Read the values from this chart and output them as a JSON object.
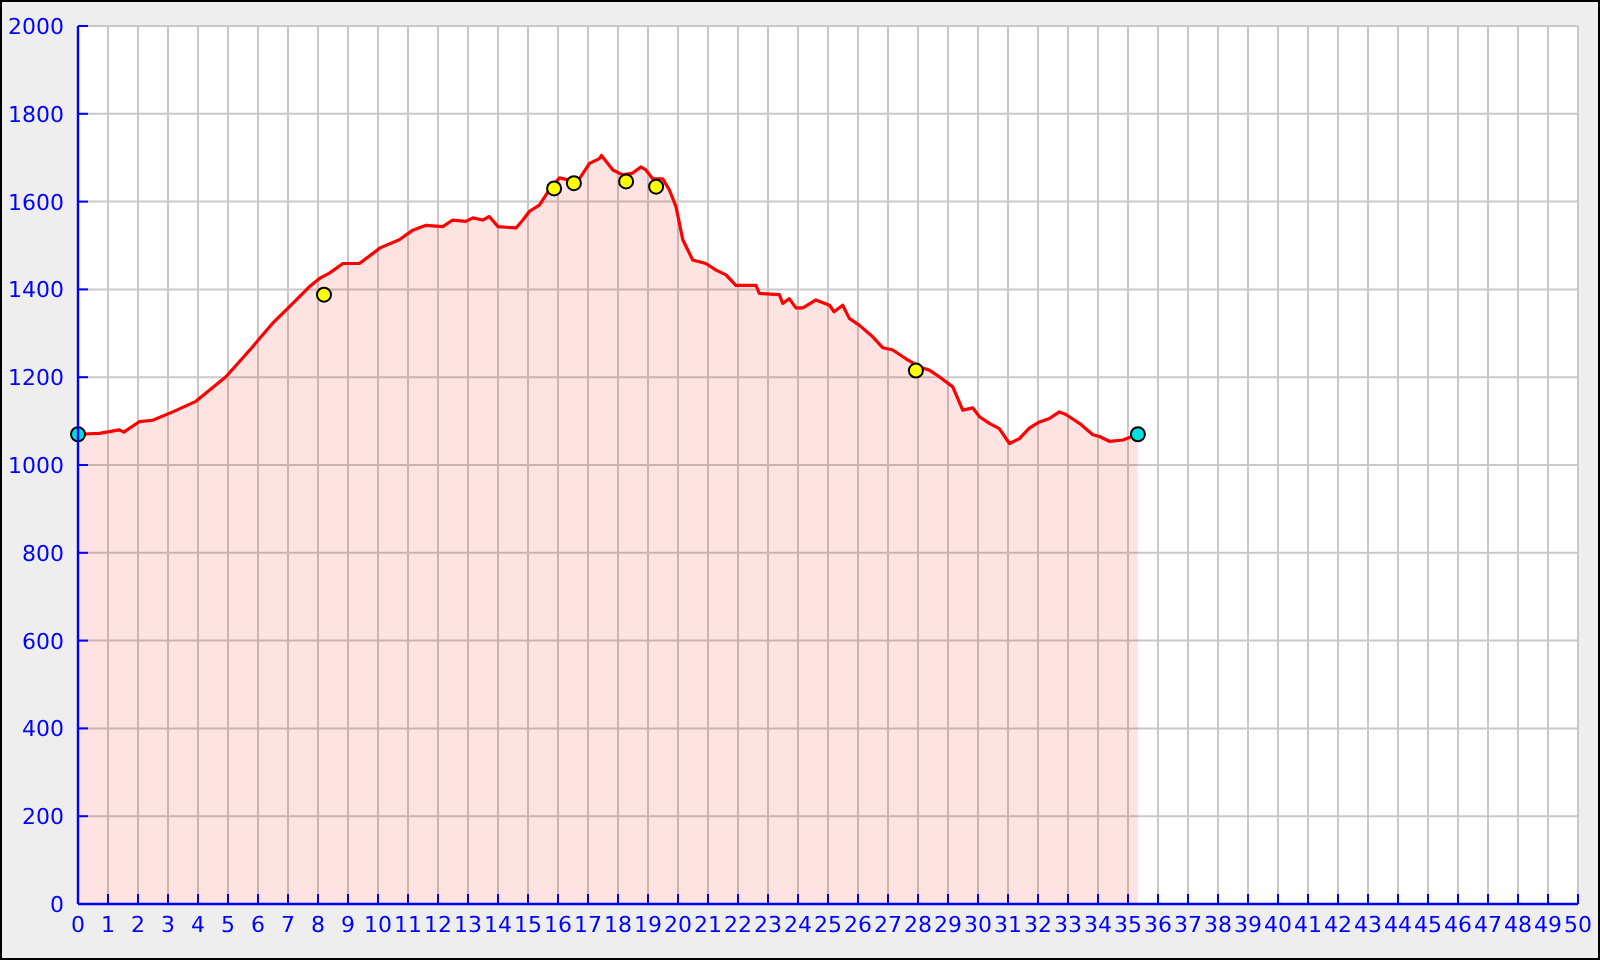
{
  "chart_data": {
    "type": "area",
    "xlim": [
      0,
      50
    ],
    "ylim": [
      0,
      2000
    ],
    "xticks": [
      0,
      1,
      2,
      3,
      4,
      5,
      6,
      7,
      8,
      9,
      10,
      11,
      12,
      13,
      14,
      15,
      16,
      17,
      18,
      19,
      20,
      21,
      22,
      23,
      24,
      25,
      26,
      27,
      28,
      29,
      30,
      31,
      32,
      33,
      34,
      35,
      36,
      37,
      38,
      39,
      40,
      41,
      42,
      43,
      44,
      45,
      46,
      47,
      48,
      49,
      50
    ],
    "yticks": [
      0,
      200,
      400,
      600,
      800,
      1000,
      1200,
      1400,
      1600,
      1800,
      2000
    ],
    "grid": true,
    "series": [
      {
        "color": "#ff0000",
        "x": [
          0,
          0.71,
          1.38,
          1.53,
          2.05,
          2.49,
          3.16,
          3.93,
          4.93,
          5.83,
          6.05,
          6.49,
          7.05,
          7.71,
          8.05,
          8.38,
          8.83,
          9.38,
          9.83,
          10.05,
          10.71,
          11.16,
          11.6,
          12.16,
          12.49,
          12.93,
          13.16,
          13.49,
          13.71,
          14.0,
          14.6,
          14.83,
          15.05,
          15.38,
          15.71,
          16.05,
          16.38,
          16.71,
          17.05,
          17.38,
          17.45,
          17.6,
          17.83,
          18.16,
          18.49,
          18.76,
          18.93,
          19.16,
          19.49,
          19.71,
          19.93,
          20.16,
          20.49,
          20.93,
          21.27,
          21.6,
          21.93,
          22.6,
          22.71,
          23.38,
          23.49,
          23.71,
          23.93,
          24.16,
          24.6,
          25.05,
          25.2,
          25.49,
          25.71,
          26.05,
          26.49,
          26.83,
          27.16,
          27.6,
          28.05,
          28.38,
          28.71,
          29.16,
          29.49,
          29.83,
          30.05,
          30.38,
          30.71,
          31.05,
          31.38,
          31.71,
          32.05,
          32.38,
          32.71,
          32.93,
          33.38,
          33.83,
          34.05,
          34.38,
          34.83,
          35.33
        ],
        "values": [
          1070,
          1072,
          1080,
          1075,
          1099,
          1102,
          1121,
          1145,
          1201,
          1270,
          1288,
          1323,
          1361,
          1406,
          1425,
          1437,
          1459,
          1459,
          1482,
          1494,
          1513,
          1535,
          1546,
          1543,
          1558,
          1555,
          1563,
          1558,
          1566,
          1543,
          1540,
          1558,
          1578,
          1592,
          1627,
          1654,
          1649,
          1652,
          1687,
          1698,
          1705,
          1692,
          1672,
          1661,
          1665,
          1679,
          1672,
          1652,
          1652,
          1627,
          1589,
          1513,
          1467,
          1459,
          1444,
          1433,
          1409,
          1409,
          1391,
          1388,
          1368,
          1379,
          1358,
          1358,
          1376,
          1364,
          1349,
          1364,
          1334,
          1318,
          1292,
          1267,
          1262,
          1242,
          1224,
          1216,
          1201,
          1178,
          1125,
          1130,
          1110,
          1095,
          1083,
          1049,
          1060,
          1084,
          1098,
          1106,
          1121,
          1115,
          1095,
          1069,
          1065,
          1054,
          1057,
          1070
        ]
      },
      {
        "type": "scatter",
        "color": "#ffff00",
        "marker": "circle",
        "x": [
          8.2,
          15.87,
          16.53,
          18.27,
          19.27,
          27.93
        ],
        "values": [
          1388,
          1630,
          1642,
          1646,
          1634,
          1215
        ]
      },
      {
        "type": "scatter",
        "color": "#00e0e0",
        "marker": "circle",
        "x": [
          0,
          35.33
        ],
        "values": [
          1070,
          1070
        ]
      }
    ]
  }
}
